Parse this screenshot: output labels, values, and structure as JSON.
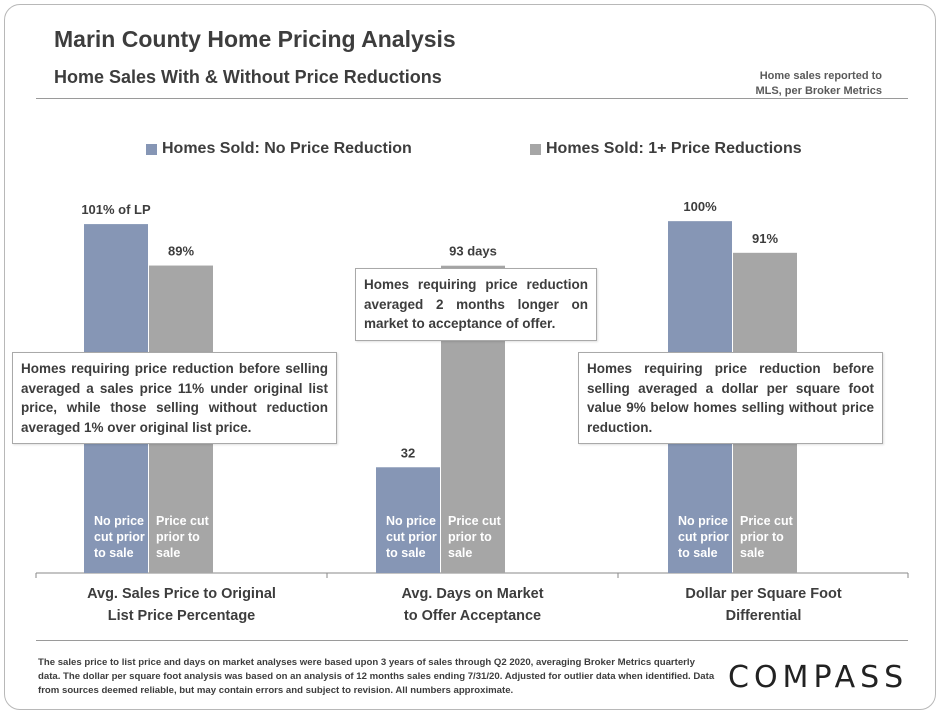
{
  "header": {
    "title": "Marin County Home Pricing Analysis",
    "subtitle": "Home Sales With & Without Price Reductions",
    "source_line1": "Home sales reported to",
    "source_line2": "MLS, per Broker Metrics"
  },
  "colors": {
    "no_reduction": "#8696b5",
    "reduction": "#a6a6a6",
    "axis": "#8a8a8a"
  },
  "chart_data": {
    "type": "bar",
    "title": "Home Sales With & Without Price Reductions",
    "legend": "top",
    "series": [
      {
        "name": "Homes Sold: No Price Reduction",
        "inbar_lines": [
          "No price",
          "cut prior",
          "to sale"
        ]
      },
      {
        "name": "Homes Sold: 1+ Price Reductions",
        "inbar_lines": [
          "Price cut",
          "prior to",
          "sale"
        ]
      }
    ],
    "groups": [
      {
        "label_line1": "Avg. Sales Price to Original",
        "label_line2": "List Price Percentage",
        "unit": "% of list price",
        "ymax": 110,
        "values": [
          101,
          89
        ],
        "data_labels": [
          "101% of LP",
          "89%"
        ],
        "callout": "Homes requiring price reduction before selling averaged a sales price 11% under original list price, while those selling without reduction averaged 1% over original list price."
      },
      {
        "label_line1": "Avg. Days on Market",
        "label_line2": "to Offer Acceptance",
        "unit": "days",
        "ymax": 115,
        "values": [
          32,
          93
        ],
        "data_labels": [
          "32",
          "93 days"
        ],
        "callout": "Homes requiring price reduction averaged 2 months longer on market to acceptance of offer."
      },
      {
        "label_line1": "Dollar per Square Foot",
        "label_line2": "Differential",
        "unit": "% of comparable value",
        "ymax": 108,
        "values": [
          100,
          91
        ],
        "data_labels": [
          "100%",
          "91%"
        ],
        "callout": "Homes requiring price reduction before selling averaged a dollar per square foot value 9% below homes selling without price reduction."
      }
    ]
  },
  "footer": {
    "note": "The sales price to list price and days on market analyses were based upon 3 years of sales through Q2 2020, averaging Broker Metrics quarterly data. The dollar per square foot analysis was based on an analysis of 12 months sales ending 7/31/20.  Adjusted for outlier data when identified. Data from sources deemed reliable,  but may contain errors and subject to revision. All numbers approximate.",
    "logo": "COMPASS"
  }
}
